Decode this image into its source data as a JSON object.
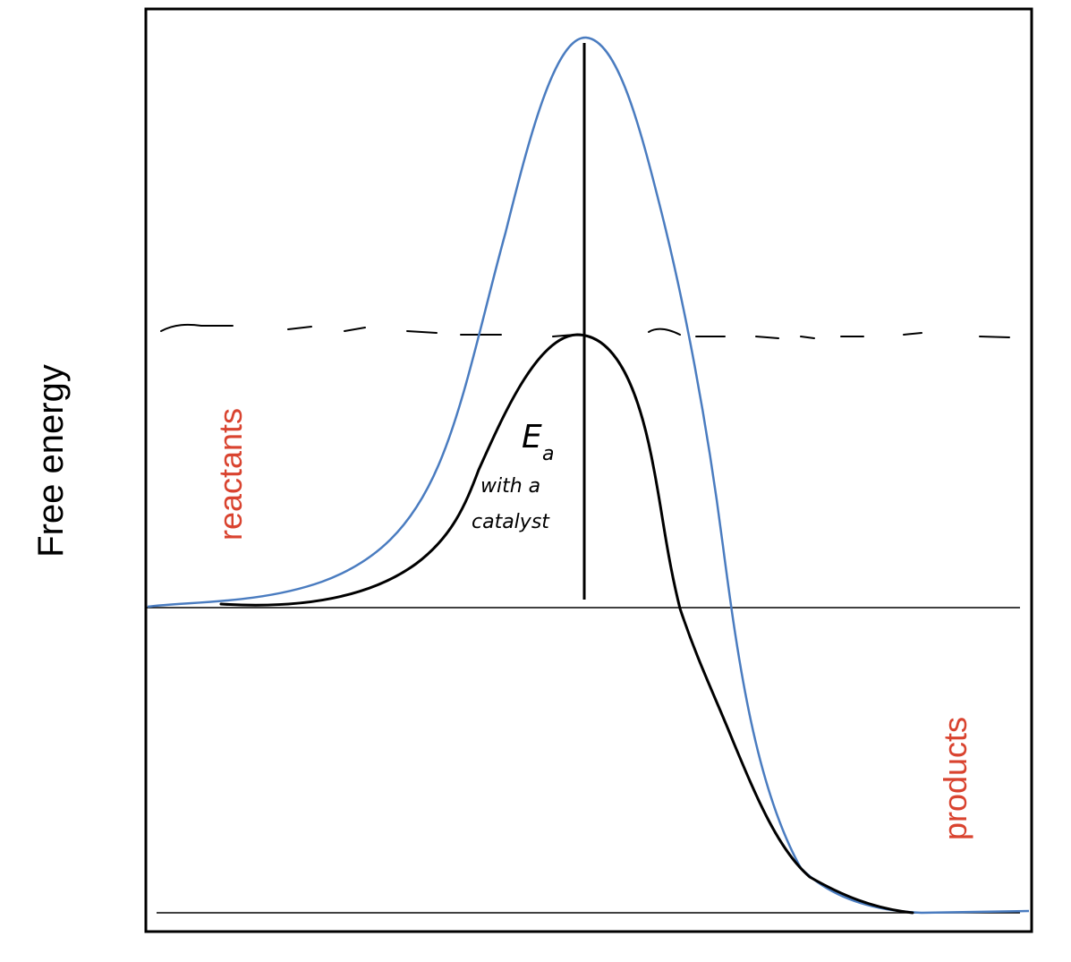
{
  "diagram": {
    "y_axis_label": "Free energy",
    "reactants_label": "reactants",
    "products_label": "products",
    "ea_label_main": "E",
    "ea_label_sub": "a",
    "ea_note_line1": "with a",
    "ea_note_line2": "catalyst"
  },
  "colors": {
    "uncatalyzed_curve": "#4a7cc0",
    "catalyzed_curve": "#000000",
    "side_labels": "#d9432f",
    "frame": "#000000"
  }
}
